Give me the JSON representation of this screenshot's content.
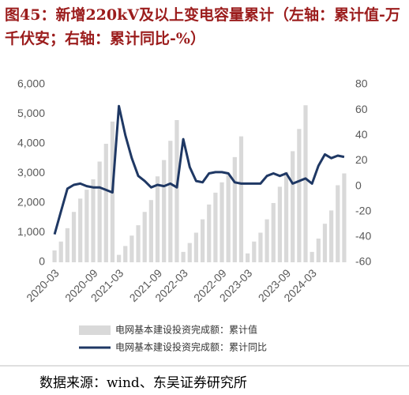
{
  "chart_data": {
    "type": "bar-line",
    "title": "图45：新增220kV及以上变电容量累计（左轴：累计值-万千伏安；右轴：累计同比-%）",
    "source": "数据来源：wind、东吴证券研究所",
    "categories": [
      "2020-03",
      null,
      null,
      null,
      null,
      null,
      "2020-09",
      null,
      null,
      null,
      "2021-03",
      null,
      null,
      null,
      null,
      null,
      "2021-09",
      null,
      null,
      null,
      "2022-03",
      null,
      null,
      null,
      null,
      null,
      "2022-09",
      null,
      null,
      null,
      "2023-03",
      null,
      null,
      null,
      null,
      null,
      "2023-09",
      null,
      null,
      null,
      "2024-03",
      null,
      null,
      null,
      null,
      null
    ],
    "series": [
      {
        "name": "电网基本建设投资完成额：累计值",
        "type": "bar",
        "color": "#d9d9d9",
        "values": [
          400,
          700,
          1150,
          1700,
          2150,
          2450,
          2800,
          3400,
          4000,
          4750,
          250,
          550,
          900,
          1250,
          1700,
          2100,
          2900,
          3450,
          4100,
          4800,
          350,
          650,
          1000,
          1450,
          1950,
          2350,
          2700,
          2950,
          3550,
          4250,
          300,
          700,
          1000,
          1450,
          2000,
          2550,
          3050,
          3750,
          4500,
          5300,
          350,
          800,
          1300,
          1750,
          2600,
          3000
        ]
      },
      {
        "name": "电网基本建设投资完成额：累计同比",
        "type": "line",
        "color": "#1f3864",
        "axis": "y2",
        "values": [
          -38,
          -20,
          -2,
          1,
          2,
          0,
          -1,
          -1,
          -3,
          -5,
          63,
          40,
          22,
          8,
          4,
          -1,
          1,
          0,
          2,
          -1,
          37,
          15,
          4,
          3,
          10,
          11,
          11,
          10,
          3,
          2,
          2,
          2,
          2,
          8,
          10,
          8,
          10,
          2,
          4,
          6,
          2,
          16,
          25,
          22,
          24,
          23
        ]
      }
    ],
    "ylim": [
      0,
      6000
    ],
    "yticks": [
      0,
      {
        "value": 1000,
        "label": "1,000"
      },
      {
        "value": 2000,
        "label": "2,000"
      },
      {
        "value": 3000,
        "label": "3,000"
      },
      {
        "value": 4000,
        "label": "4,000"
      },
      {
        "value": 5000,
        "label": "5,000"
      },
      {
        "value": 6000,
        "label": "6,000"
      }
    ],
    "y2lim": [
      -60,
      80
    ],
    "y2ticks": [
      -60,
      -40,
      -20,
      0,
      20,
      40,
      60,
      80
    ],
    "legend": "bottom"
  }
}
